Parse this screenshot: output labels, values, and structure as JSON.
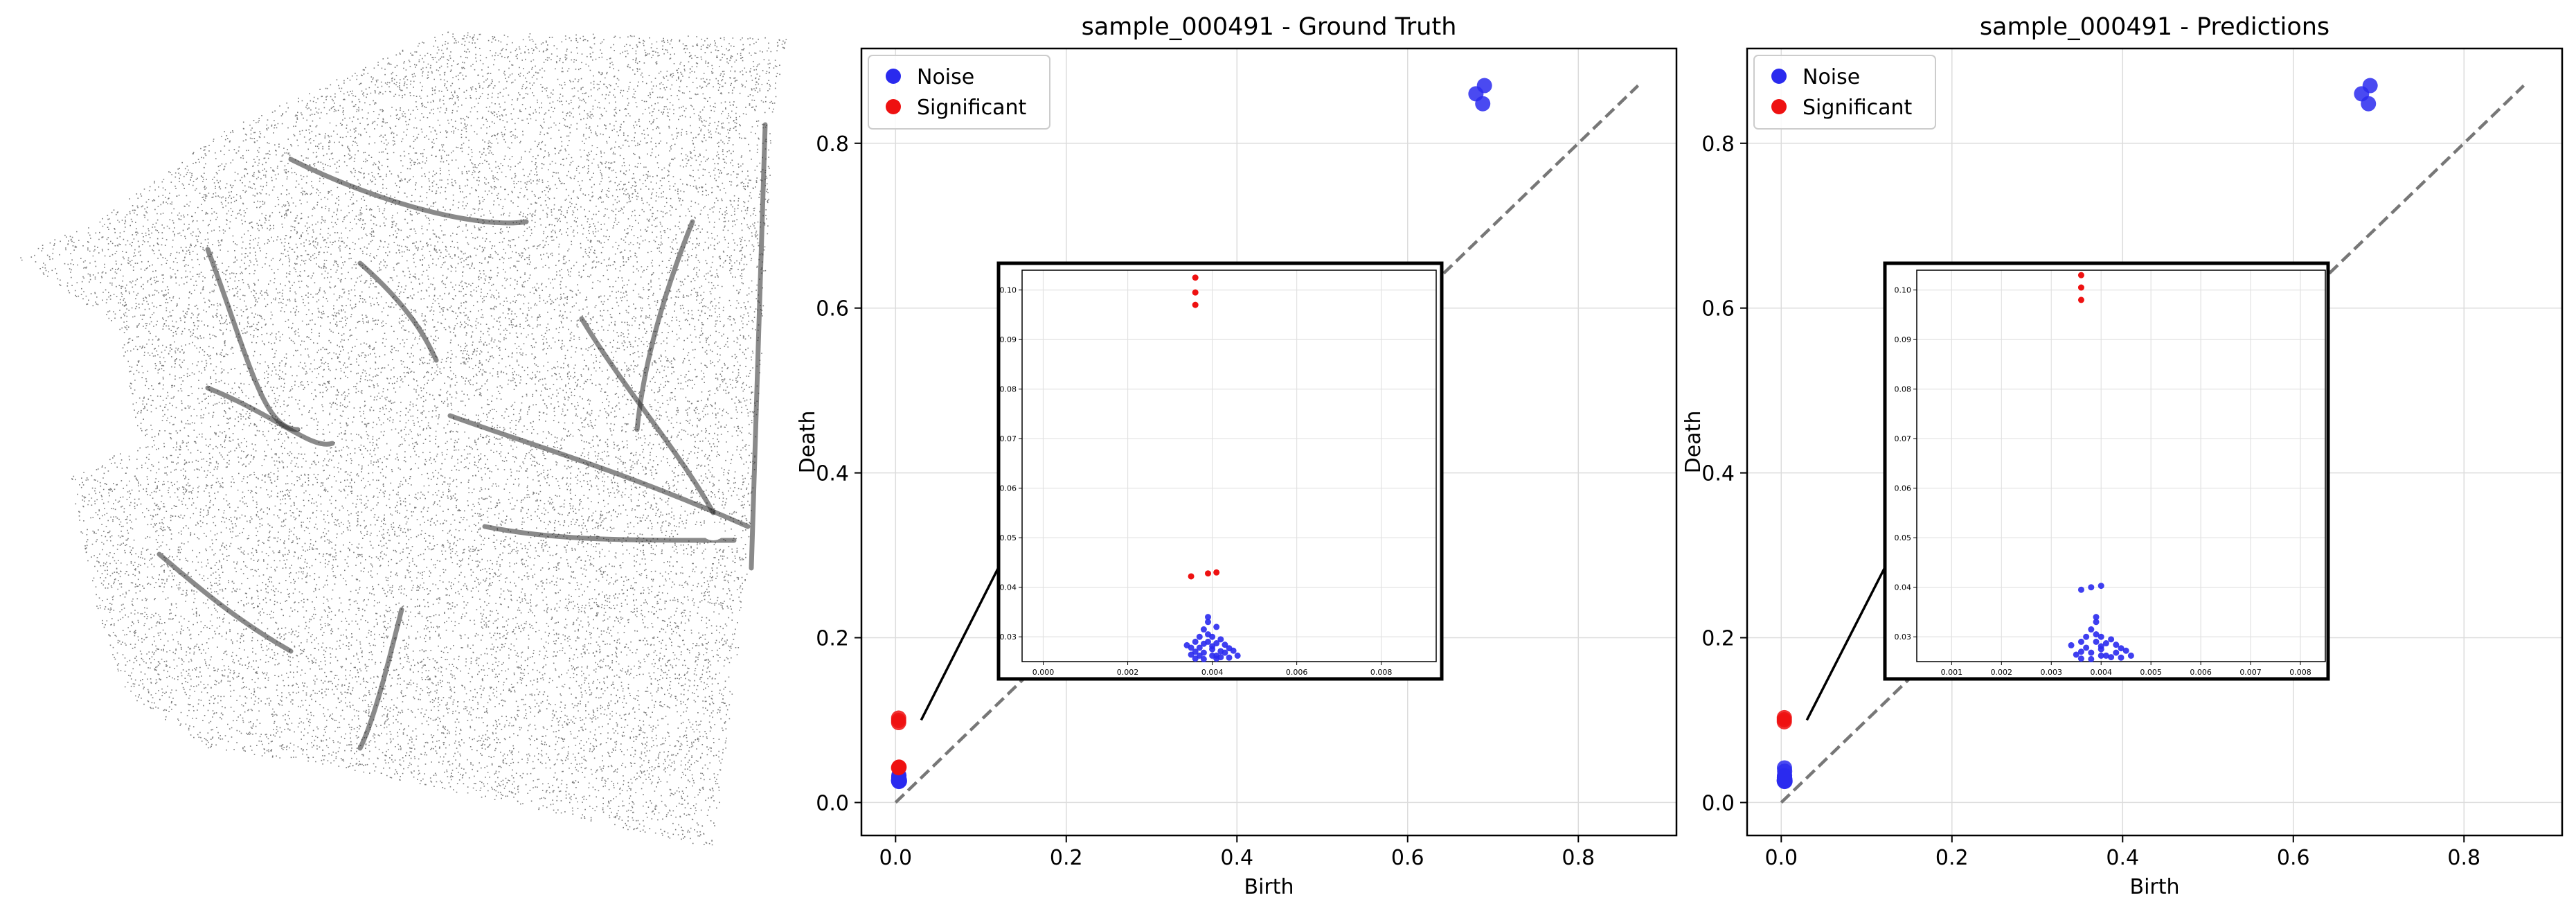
{
  "chart_data": [
    {
      "type": "scatter",
      "title": "sample_000491 - Ground Truth",
      "xlabel": "Birth",
      "ylabel": "Death",
      "xlim": [
        -0.04,
        0.915
      ],
      "ylim": [
        -0.04,
        0.915
      ],
      "xticks": [
        0.0,
        0.2,
        0.4,
        0.6,
        0.8
      ],
      "yticks": [
        0.0,
        0.2,
        0.4,
        0.6,
        0.8
      ],
      "xtick_labels": [
        "0.0",
        "0.2",
        "0.4",
        "0.6",
        "0.8"
      ],
      "ytick_labels": [
        "0.0",
        "0.2",
        "0.4",
        "0.6",
        "0.8"
      ],
      "grid": true,
      "legend": "top-left",
      "diagonal": [
        0.0,
        0.87
      ],
      "series": [
        {
          "name": "Noise",
          "color": "#2a2aee",
          "points": [
            [
              0.0038,
              0.0255
            ],
            [
              0.0041,
              0.0262
            ],
            [
              0.0036,
              0.027
            ],
            [
              0.004,
              0.0281
            ],
            [
              0.0043,
              0.0268
            ],
            [
              0.0039,
              0.029
            ],
            [
              0.0037,
              0.03
            ],
            [
              0.0042,
              0.0259
            ],
            [
              0.004,
              0.0275
            ],
            [
              0.0038,
              0.0315
            ],
            [
              0.0044,
              0.0258
            ],
            [
              0.0035,
              0.0264
            ],
            [
              0.0046,
              0.0262
            ],
            [
              0.0039,
              0.033
            ],
            [
              0.0041,
              0.0287
            ],
            [
              0.68,
              0.86
            ],
            [
              0.69,
              0.87
            ],
            [
              0.688,
              0.848
            ]
          ]
        },
        {
          "name": "Significant",
          "color": "#ee1111",
          "points": [
            [
              0.0036,
              0.1025
            ],
            [
              0.0036,
              0.0995
            ],
            [
              0.0036,
              0.097
            ],
            [
              0.0035,
              0.0422
            ],
            [
              0.0039,
              0.0428
            ],
            [
              0.0041,
              0.043
            ]
          ]
        }
      ],
      "inset": {
        "xlim": [
          -0.0005,
          0.0093
        ],
        "ylim": [
          0.025,
          0.104
        ],
        "xticks": [
          0.0,
          0.002,
          0.004,
          0.006,
          0.008
        ],
        "yticks": [
          0.03,
          0.04,
          0.05,
          0.06,
          0.07,
          0.08,
          0.09,
          0.1
        ],
        "xtick_labels": [
          "0.000",
          "0.002",
          "0.004",
          "0.006",
          "0.008"
        ],
        "ytick_labels": [
          "0.03",
          "0.04",
          "0.05",
          "0.06",
          "0.07",
          "0.08",
          "0.09",
          "0.10"
        ],
        "noise_points": [
          [
            0.0038,
            0.0255
          ],
          [
            0.0041,
            0.0262
          ],
          [
            0.0036,
            0.027
          ],
          [
            0.004,
            0.0281
          ],
          [
            0.0043,
            0.0268
          ],
          [
            0.0039,
            0.029
          ],
          [
            0.0037,
            0.03
          ],
          [
            0.0042,
            0.0259
          ],
          [
            0.004,
            0.0275
          ],
          [
            0.0038,
            0.0315
          ],
          [
            0.0044,
            0.0258
          ],
          [
            0.0035,
            0.0264
          ],
          [
            0.0046,
            0.0262
          ],
          [
            0.0039,
            0.033
          ],
          [
            0.0041,
            0.0287
          ],
          [
            0.0037,
            0.0278
          ],
          [
            0.0045,
            0.0272
          ],
          [
            0.0034,
            0.0283
          ],
          [
            0.0042,
            0.0295
          ],
          [
            0.004,
            0.0262
          ],
          [
            0.0036,
            0.0256
          ],
          [
            0.0039,
            0.0305
          ],
          [
            0.0043,
            0.0284
          ],
          [
            0.0038,
            0.0268
          ],
          [
            0.0041,
            0.032
          ],
          [
            0.0036,
            0.029
          ],
          [
            0.0044,
            0.0277
          ],
          [
            0.004,
            0.03
          ],
          [
            0.0037,
            0.0262
          ],
          [
            0.0039,
            0.034
          ],
          [
            0.0042,
            0.0271
          ],
          [
            0.0035,
            0.0278
          ],
          [
            0.0041,
            0.0256
          ],
          [
            0.0038,
            0.0286
          ]
        ],
        "significant_points": [
          [
            0.0036,
            0.1025
          ],
          [
            0.0036,
            0.0995
          ],
          [
            0.0036,
            0.097
          ],
          [
            0.0035,
            0.0422
          ],
          [
            0.0039,
            0.0428
          ],
          [
            0.0041,
            0.043
          ]
        ]
      }
    },
    {
      "type": "scatter",
      "title": "sample_000491 - Predictions",
      "xlabel": "Birth",
      "ylabel": "Death",
      "xlim": [
        -0.04,
        0.915
      ],
      "ylim": [
        -0.04,
        0.915
      ],
      "xticks": [
        0.0,
        0.2,
        0.4,
        0.6,
        0.8
      ],
      "yticks": [
        0.0,
        0.2,
        0.4,
        0.6,
        0.8
      ],
      "xtick_labels": [
        "0.0",
        "0.2",
        "0.4",
        "0.6",
        "0.8"
      ],
      "ytick_labels": [
        "0.0",
        "0.2",
        "0.4",
        "0.6",
        "0.8"
      ],
      "grid": true,
      "legend": "top-left",
      "diagonal": [
        0.0,
        0.87
      ],
      "series": [
        {
          "name": "Noise",
          "color": "#2a2aee",
          "points": [
            [
              0.0038,
              0.0255
            ],
            [
              0.0041,
              0.0262
            ],
            [
              0.0036,
              0.027
            ],
            [
              0.004,
              0.0281
            ],
            [
              0.0043,
              0.0268
            ],
            [
              0.0039,
              0.029
            ],
            [
              0.0037,
              0.03
            ],
            [
              0.0042,
              0.0259
            ],
            [
              0.004,
              0.0275
            ],
            [
              0.0038,
              0.0315
            ],
            [
              0.0044,
              0.0258
            ],
            [
              0.0035,
              0.0264
            ],
            [
              0.0039,
              0.033
            ],
            [
              0.0041,
              0.0287
            ],
            [
              0.004,
              0.038
            ],
            [
              0.0038,
              0.042
            ],
            [
              0.68,
              0.86
            ],
            [
              0.69,
              0.87
            ],
            [
              0.688,
              0.848
            ]
          ]
        },
        {
          "name": "Significant",
          "color": "#ee1111",
          "points": [
            [
              0.0036,
              0.103
            ],
            [
              0.0036,
              0.1005
            ],
            [
              0.0036,
              0.098
            ]
          ]
        }
      ],
      "inset": {
        "xlim": [
          0.0003,
          0.0085
        ],
        "ylim": [
          0.025,
          0.104
        ],
        "xticks": [
          0.001,
          0.002,
          0.003,
          0.004,
          0.005,
          0.006,
          0.007,
          0.008
        ],
        "yticks": [
          0.03,
          0.04,
          0.05,
          0.06,
          0.07,
          0.08,
          0.09,
          0.1
        ],
        "xtick_labels": [
          "0.001",
          "0.002",
          "0.003",
          "0.004",
          "0.005",
          "0.006",
          "0.007",
          "0.008"
        ],
        "ytick_labels": [
          "0.03",
          "0.04",
          "0.05",
          "0.06",
          "0.07",
          "0.08",
          "0.09",
          "0.10"
        ],
        "noise_points": [
          [
            0.0038,
            0.0255
          ],
          [
            0.0041,
            0.0262
          ],
          [
            0.0036,
            0.027
          ],
          [
            0.004,
            0.0281
          ],
          [
            0.0043,
            0.0268
          ],
          [
            0.0039,
            0.029
          ],
          [
            0.0037,
            0.03
          ],
          [
            0.0042,
            0.0259
          ],
          [
            0.004,
            0.0275
          ],
          [
            0.0038,
            0.0315
          ],
          [
            0.0044,
            0.0258
          ],
          [
            0.0035,
            0.0264
          ],
          [
            0.0046,
            0.0262
          ],
          [
            0.0039,
            0.033
          ],
          [
            0.0041,
            0.0287
          ],
          [
            0.0037,
            0.0278
          ],
          [
            0.0045,
            0.0272
          ],
          [
            0.0034,
            0.0283
          ],
          [
            0.0042,
            0.0295
          ],
          [
            0.004,
            0.0262
          ],
          [
            0.0036,
            0.0256
          ],
          [
            0.0039,
            0.0305
          ],
          [
            0.0043,
            0.0284
          ],
          [
            0.0038,
            0.0268
          ],
          [
            0.0036,
            0.029
          ],
          [
            0.0044,
            0.0277
          ],
          [
            0.004,
            0.03
          ],
          [
            0.0039,
            0.034
          ],
          [
            0.0036,
            0.0395
          ],
          [
            0.0038,
            0.04
          ],
          [
            0.004,
            0.0403
          ]
        ],
        "significant_points": [
          [
            0.0036,
            0.103
          ],
          [
            0.0036,
            0.1005
          ],
          [
            0.0036,
            0.098
          ]
        ]
      }
    }
  ]
}
